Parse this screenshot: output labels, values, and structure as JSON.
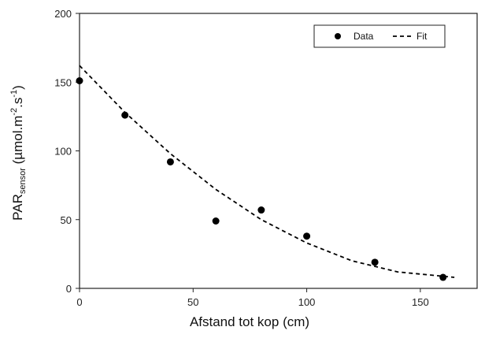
{
  "chart_data": {
    "type": "scatter",
    "xlabel": "Afstand tot kop (cm)",
    "ylabel": {
      "main": "PAR",
      "subscript": "sensor",
      "unit_prefix": " (µmol.m",
      "sup1": "-2",
      "unit_mid": ".s",
      "sup2": "-1",
      "unit_suffix": ")"
    },
    "xlim": [
      0,
      175
    ],
    "ylim": [
      0,
      200
    ],
    "xticks": [
      "0",
      "50",
      "100",
      "150"
    ],
    "yticks": [
      "0",
      "50",
      "100",
      "150",
      "200"
    ],
    "xtick_values": [
      0,
      50,
      100,
      150
    ],
    "ytick_values": [
      0,
      50,
      100,
      150,
      200
    ],
    "grid": false,
    "legend_position": "top-right",
    "series": [
      {
        "name": "Data",
        "kind": "markers",
        "color": "#000000",
        "x": [
          0,
          20,
          40,
          60,
          80,
          100,
          130,
          160
        ],
        "y": [
          151,
          126,
          92,
          49,
          57,
          38,
          19,
          8
        ]
      },
      {
        "name": "Fit",
        "kind": "dashed-line",
        "color": "#000000",
        "x": [
          0,
          20,
          40,
          60,
          80,
          100,
          120,
          140,
          165
        ],
        "y": [
          162,
          128,
          98,
          72,
          50,
          33,
          20,
          12,
          8
        ]
      }
    ]
  }
}
